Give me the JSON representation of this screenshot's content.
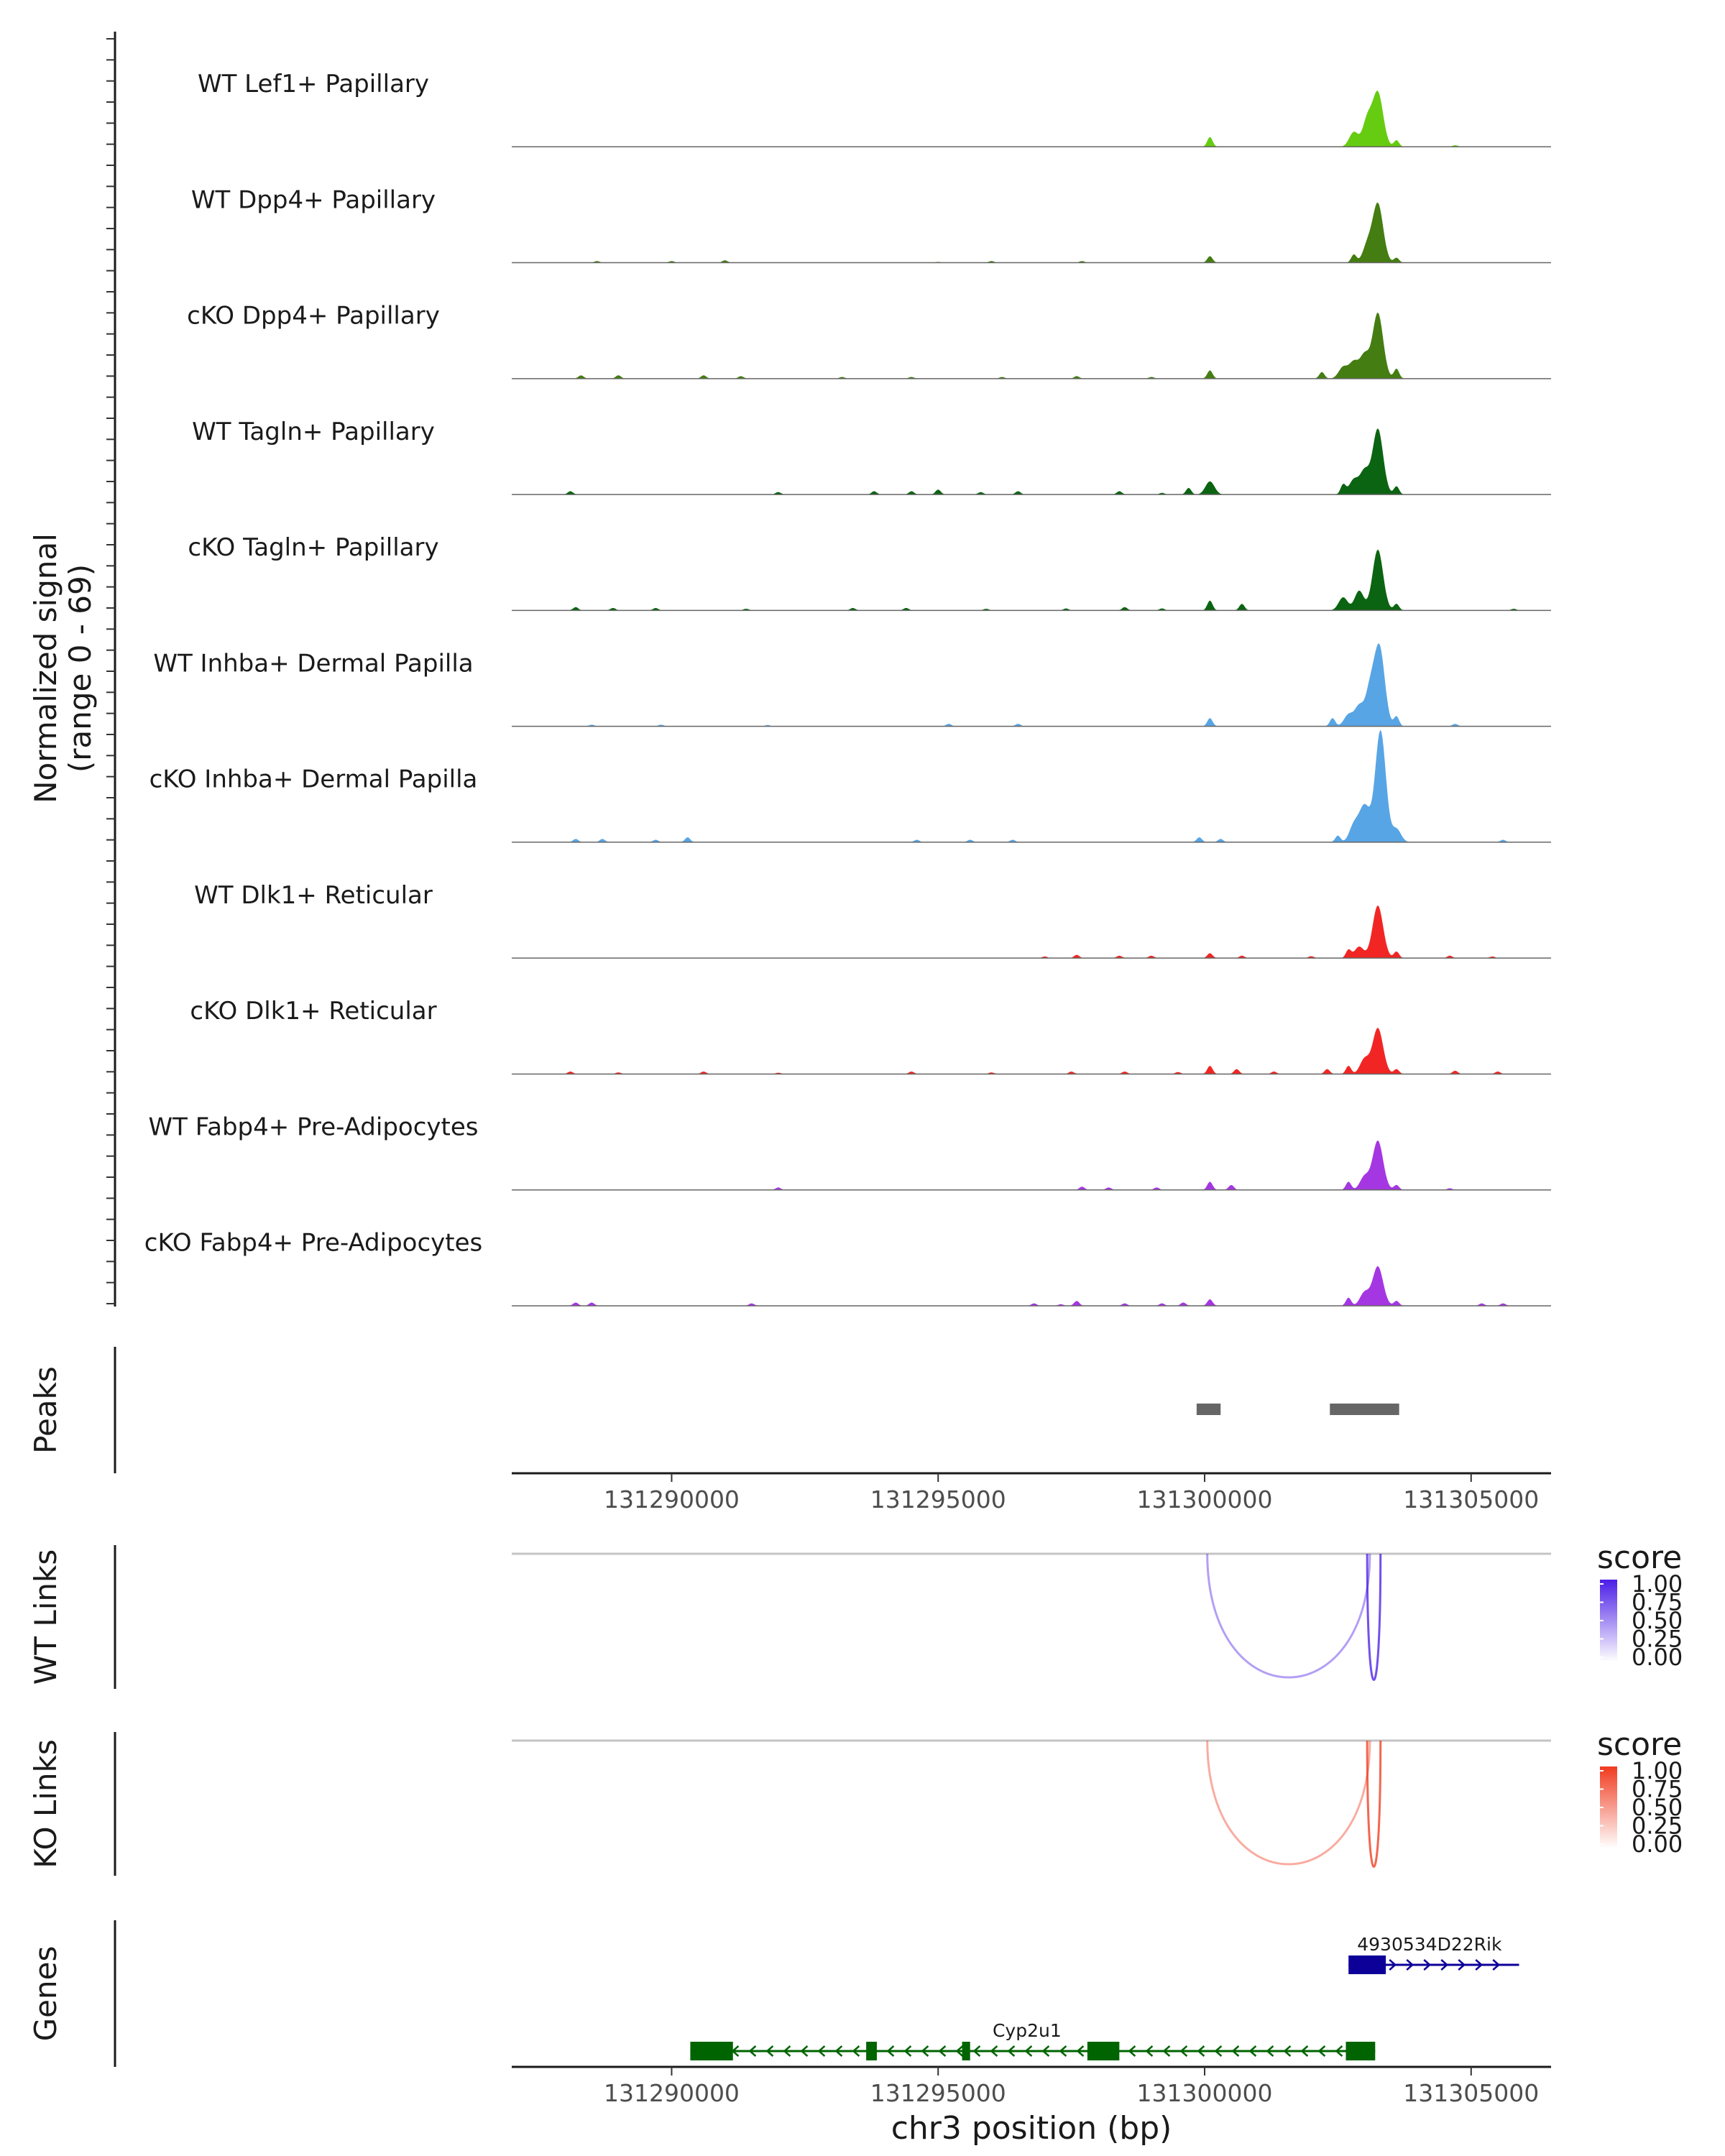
{
  "chart_data": {
    "type": "genome-coverage",
    "region": {
      "chrom": "chr3",
      "start": 131287000,
      "end": 131306500
    },
    "y_axis_label": [
      "Normalized signal",
      "(range 0 - 69)"
    ],
    "y_range": [
      0,
      69
    ],
    "x_axis_title": "chr3 position (bp)",
    "x_ticks": [
      131290000,
      131295000,
      131300000,
      131305000
    ],
    "x_tick_labels": [
      "131290000",
      "131295000",
      "131300000",
      "131305000"
    ],
    "tracks": [
      {
        "label": "WT Lef1+ Papillary",
        "color": "#66cc11",
        "peaks": [
          [
            131288500,
            0.3
          ],
          [
            131290500,
            0.2
          ],
          [
            131300100,
            6
          ],
          [
            131302800,
            9
          ],
          [
            131303050,
            16
          ],
          [
            131303250,
            33
          ],
          [
            131303600,
            4
          ],
          [
            131304700,
            1
          ]
        ]
      },
      {
        "label": "WT Dpp4+ Papillary",
        "color": "#447d11",
        "peaks": [
          [
            131288600,
            1
          ],
          [
            131290000,
            1
          ],
          [
            131291000,
            1.5
          ],
          [
            131295000,
            0.5
          ],
          [
            131296000,
            1
          ],
          [
            131297700,
            1
          ],
          [
            131300100,
            4
          ],
          [
            131302800,
            5
          ],
          [
            131303050,
            10
          ],
          [
            131303250,
            36
          ],
          [
            131303600,
            3
          ]
        ]
      },
      {
        "label": "cKO Dpp4+ Papillary",
        "color": "#447d11",
        "peaks": [
          [
            131288300,
            2
          ],
          [
            131289000,
            2
          ],
          [
            131290600,
            2
          ],
          [
            131291300,
            1.5
          ],
          [
            131293200,
            1
          ],
          [
            131294500,
            1
          ],
          [
            131296200,
            1
          ],
          [
            131297600,
            1.5
          ],
          [
            131299000,
            1
          ],
          [
            131300100,
            5
          ],
          [
            131302200,
            4
          ],
          [
            131302600,
            7
          ],
          [
            131302800,
            10
          ],
          [
            131303000,
            14
          ],
          [
            131303250,
            40
          ],
          [
            131303600,
            6
          ]
        ]
      },
      {
        "label": "WT Tagln+ Papillary",
        "color": "#0b6411",
        "peaks": [
          [
            131288100,
            2
          ],
          [
            131292000,
            1.5
          ],
          [
            131293800,
            2
          ],
          [
            131294500,
            2
          ],
          [
            131295000,
            3
          ],
          [
            131295800,
            1.5
          ],
          [
            131296500,
            2
          ],
          [
            131298400,
            2
          ],
          [
            131299200,
            1
          ],
          [
            131299700,
            4
          ],
          [
            131300100,
            8
          ],
          [
            131302600,
            6
          ],
          [
            131302800,
            9
          ],
          [
            131303000,
            14
          ],
          [
            131303250,
            40
          ],
          [
            131303600,
            5
          ]
        ]
      },
      {
        "label": "cKO Tagln+ Papillary",
        "color": "#0b6411",
        "peaks": [
          [
            131288200,
            2
          ],
          [
            131288900,
            1.5
          ],
          [
            131289700,
            1.5
          ],
          [
            131291400,
            1
          ],
          [
            131293400,
            1.5
          ],
          [
            131294400,
            1.5
          ],
          [
            131295900,
            1
          ],
          [
            131297400,
            1.2
          ],
          [
            131298500,
            2
          ],
          [
            131299200,
            1.2
          ],
          [
            131300100,
            6
          ],
          [
            131300700,
            4
          ],
          [
            131302600,
            8
          ],
          [
            131302900,
            12
          ],
          [
            131303250,
            37
          ],
          [
            131303600,
            4
          ],
          [
            131305800,
            1
          ]
        ]
      },
      {
        "label": "WT Inhba+ Dermal Papilla",
        "color": "#58a5e5",
        "peaks": [
          [
            131288500,
            1
          ],
          [
            131289800,
            1
          ],
          [
            131291800,
            0.8
          ],
          [
            131295200,
            1.5
          ],
          [
            131296500,
            1.5
          ],
          [
            131300100,
            5
          ],
          [
            131302400,
            5
          ],
          [
            131302700,
            7
          ],
          [
            131302900,
            12
          ],
          [
            131303100,
            20
          ],
          [
            131303280,
            48
          ],
          [
            131303600,
            6
          ],
          [
            131304700,
            1.5
          ]
        ]
      },
      {
        "label": "cKO Inhba+ Dermal Papilla",
        "color": "#58a5e5",
        "peaks": [
          [
            131288200,
            2
          ],
          [
            131288700,
            2
          ],
          [
            131289700,
            1.5
          ],
          [
            131290300,
            3
          ],
          [
            131294600,
            1.5
          ],
          [
            131295600,
            1.5
          ],
          [
            131296400,
            1.5
          ],
          [
            131299900,
            3
          ],
          [
            131300300,
            2
          ],
          [
            131302500,
            4
          ],
          [
            131302800,
            10
          ],
          [
            131303000,
            22
          ],
          [
            131303300,
            68
          ],
          [
            131303600,
            8
          ],
          [
            131305600,
            1.5
          ]
        ]
      },
      {
        "label": "WT Dlk1+ Reticular",
        "color": "#f12624",
        "peaks": [
          [
            131289500,
            0.3
          ],
          [
            131297000,
            1
          ],
          [
            131297600,
            2
          ],
          [
            131298400,
            1.5
          ],
          [
            131299000,
            1.5
          ],
          [
            131300100,
            3
          ],
          [
            131300700,
            1.5
          ],
          [
            131302000,
            1.2
          ],
          [
            131302700,
            5
          ],
          [
            131302900,
            7
          ],
          [
            131303250,
            32
          ],
          [
            131303600,
            4
          ],
          [
            131304600,
            1.5
          ],
          [
            131305400,
            1
          ]
        ]
      },
      {
        "label": "cKO Dlk1+ Reticular",
        "color": "#f12624",
        "peaks": [
          [
            131288100,
            1.5
          ],
          [
            131289000,
            1
          ],
          [
            131290600,
            1.5
          ],
          [
            131292000,
            0.8
          ],
          [
            131294500,
            1.5
          ],
          [
            131296000,
            1
          ],
          [
            131297500,
            1.5
          ],
          [
            131298500,
            1.5
          ],
          [
            131299500,
            1.2
          ],
          [
            131300100,
            5
          ],
          [
            131300600,
            3
          ],
          [
            131301300,
            1.5
          ],
          [
            131302300,
            3
          ],
          [
            131302700,
            5
          ],
          [
            131303000,
            9
          ],
          [
            131303250,
            28
          ],
          [
            131303600,
            3
          ],
          [
            131304700,
            2
          ],
          [
            131305500,
            1.5
          ]
        ]
      },
      {
        "label": "WT Fabp4+ Pre-Adipocytes",
        "color": "#a537e2",
        "peaks": [
          [
            131292000,
            1.5
          ],
          [
            131297700,
            2
          ],
          [
            131298200,
            1.5
          ],
          [
            131299100,
            1.5
          ],
          [
            131300100,
            5
          ],
          [
            131300500,
            3
          ],
          [
            131302700,
            5
          ],
          [
            131303000,
            8
          ],
          [
            131303250,
            30
          ],
          [
            131303600,
            3
          ],
          [
            131304600,
            1
          ]
        ]
      },
      {
        "label": "cKO Fabp4+ Pre-Adipocytes",
        "color": "#a537e2",
        "peaks": [
          [
            131288200,
            2
          ],
          [
            131288500,
            2
          ],
          [
            131291500,
            1.5
          ],
          [
            131296800,
            1.5
          ],
          [
            131297300,
            1
          ],
          [
            131297600,
            3
          ],
          [
            131298500,
            1.5
          ],
          [
            131299200,
            1.5
          ],
          [
            131299600,
            2
          ],
          [
            131300100,
            4
          ],
          [
            131302700,
            5
          ],
          [
            131303000,
            8
          ],
          [
            131303250,
            24
          ],
          [
            131303600,
            3
          ],
          [
            131305200,
            1.5
          ],
          [
            131305600,
            1.5
          ]
        ]
      }
    ],
    "peaks_track": {
      "label": "Peaks",
      "regions": [
        [
          131299850,
          131300300
        ],
        [
          131302350,
          131303650
        ]
      ],
      "color": "#666666"
    },
    "links": [
      {
        "label": "WT Links",
        "legend_title": "score",
        "legend_color": "#4b1de6",
        "legend_ticks": [
          "1.00",
          "0.75",
          "0.50",
          "0.25",
          "0.00"
        ],
        "arcs": [
          {
            "start": 131300050,
            "end": 131303100,
            "score": 0.25
          },
          {
            "start": 131303050,
            "end": 131303300,
            "score": 0.75
          }
        ]
      },
      {
        "label": "KO Links",
        "legend_title": "score",
        "legend_color": "#f03b1f",
        "legend_ticks": [
          "1.00",
          "0.75",
          "0.50",
          "0.25",
          "0.00"
        ],
        "arcs": [
          {
            "start": 131300050,
            "end": 131303100,
            "score": 0.25
          },
          {
            "start": 131303050,
            "end": 131303300,
            "score": 0.75
          }
        ]
      }
    ],
    "genes": {
      "label": "Genes",
      "items": [
        {
          "name": "4930534D22Rik",
          "strand": "+",
          "color": "#0d0099",
          "start": 131302700,
          "end": 131305900,
          "exons": [
            [
              131302700,
              131303400
            ]
          ]
        },
        {
          "name": "Cyp2u1",
          "strand": "-",
          "color": "#006400",
          "start": 131290350,
          "end": 131303200,
          "exons": [
            [
              131290350,
              131291150
            ],
            [
              131293650,
              131293850
            ],
            [
              131295450,
              131295600
            ],
            [
              131297800,
              131298400
            ],
            [
              131302650,
              131303200
            ]
          ]
        }
      ]
    }
  }
}
